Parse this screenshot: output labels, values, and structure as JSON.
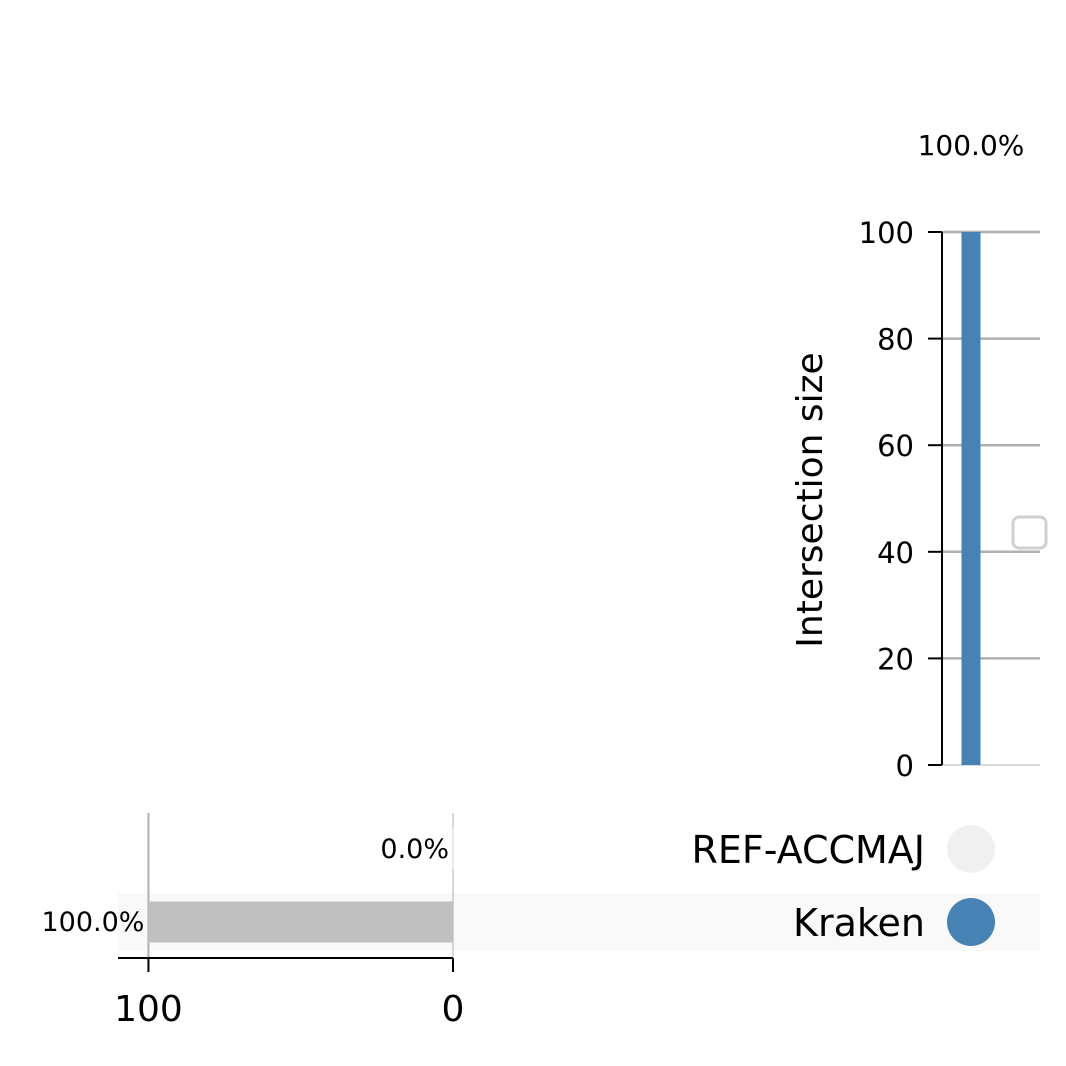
{
  "chart_data": {
    "type": "bar",
    "ylabel": "Intersection size",
    "y_ticks": [
      "0",
      "20",
      "40",
      "60",
      "80",
      "100"
    ],
    "ylim": [
      0,
      100
    ],
    "intersections": [
      {
        "value": 100,
        "label": "100.0%",
        "members": [
          "Kraken"
        ],
        "color": "#4682b4"
      }
    ],
    "sets": [
      {
        "name": "REF-ACCMAJ",
        "size": 0,
        "label": "0.0%"
      },
      {
        "name": "Kraken",
        "size": 100,
        "label": "100.0%"
      }
    ],
    "set_size_ticks": [
      "100",
      "0"
    ],
    "set_size_xlim": [
      110,
      0
    ],
    "colors": {
      "bar": "#4682b4",
      "set_bar": "#c0c0c0",
      "dot_active": "#4682b4",
      "dot_inactive": "#f0f0f0",
      "grid": "#b0b0b0",
      "row_shade": "#f9f9f9"
    }
  }
}
